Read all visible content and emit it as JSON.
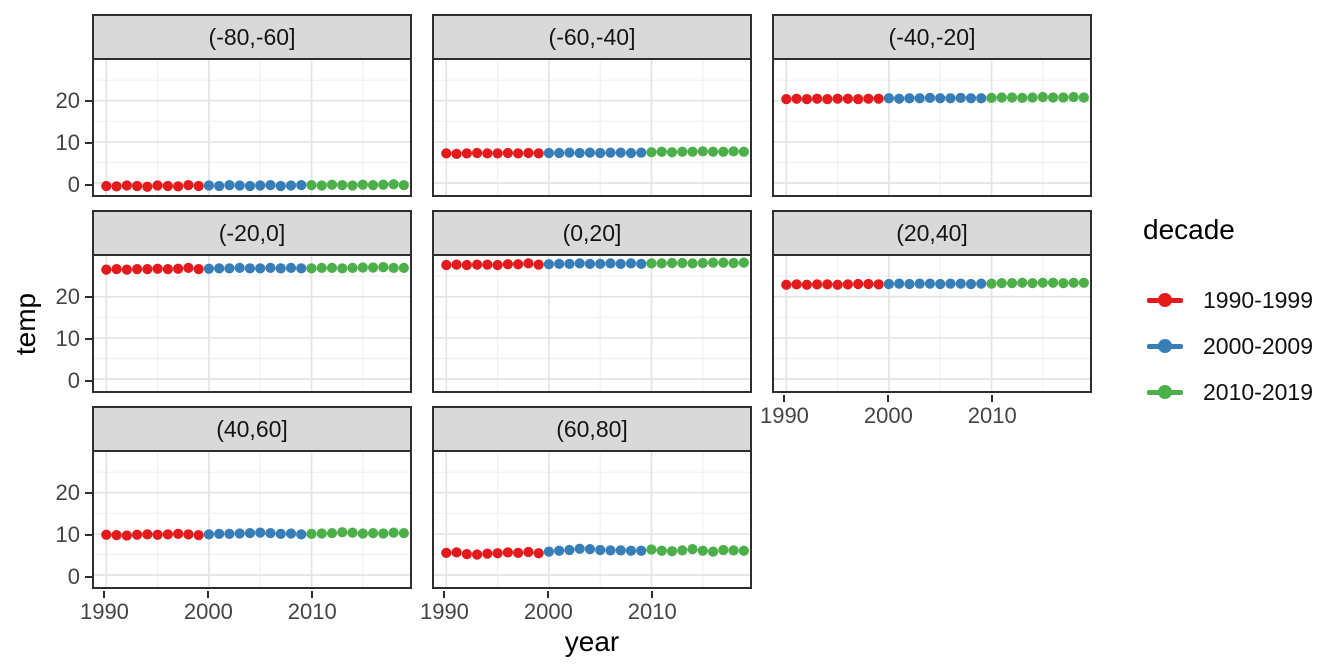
{
  "chart_data": {
    "type": "scatter",
    "title": "",
    "xlabel": "year",
    "ylabel": "temp",
    "legend_title": "decade",
    "legend_position": "right",
    "grid": true,
    "facet_layout": "3 columns, 8 panels",
    "x_range": [
      1988.8,
      2019.6
    ],
    "y_range": [
      -2.9,
      29.9
    ],
    "x_major_ticks": [
      1990,
      2000,
      2010
    ],
    "x_minor_ticks": [
      1995,
      2005,
      2015
    ],
    "y_major_ticks": [
      0,
      10,
      20
    ],
    "y_minor_ticks": [
      5,
      15,
      25
    ],
    "x": [
      1990,
      1991,
      1992,
      1993,
      1994,
      1995,
      1996,
      1997,
      1998,
      1999,
      2000,
      2001,
      2002,
      2003,
      2004,
      2005,
      2006,
      2007,
      2008,
      2009,
      2010,
      2011,
      2012,
      2013,
      2014,
      2015,
      2016,
      2017,
      2018,
      2019
    ],
    "series": [
      {
        "name": "1990-1999",
        "color": "#e41a1c"
      },
      {
        "name": "2000-2009",
        "color": "#377eb8"
      },
      {
        "name": "2010-2019",
        "color": "#4daf4a"
      }
    ],
    "facets": [
      {
        "label": "(-80,-60]",
        "temps": [
          -0.7,
          -0.8,
          -0.6,
          -0.7,
          -0.9,
          -0.6,
          -0.7,
          -0.8,
          -0.5,
          -0.7,
          -0.6,
          -0.7,
          -0.5,
          -0.6,
          -0.7,
          -0.6,
          -0.5,
          -0.7,
          -0.6,
          -0.5,
          -0.5,
          -0.6,
          -0.4,
          -0.5,
          -0.6,
          -0.4,
          -0.5,
          -0.4,
          -0.3,
          -0.5
        ]
      },
      {
        "label": "(-60,-40]",
        "temps": [
          7.2,
          7.1,
          7.2,
          7.3,
          7.2,
          7.2,
          7.3,
          7.2,
          7.3,
          7.2,
          7.3,
          7.3,
          7.4,
          7.3,
          7.4,
          7.3,
          7.4,
          7.4,
          7.3,
          7.4,
          7.5,
          7.6,
          7.5,
          7.6,
          7.6,
          7.7,
          7.6,
          7.6,
          7.7,
          7.6
        ]
      },
      {
        "label": "(-40,-20]",
        "temps": [
          20.4,
          20.5,
          20.4,
          20.5,
          20.4,
          20.5,
          20.5,
          20.4,
          20.5,
          20.5,
          20.6,
          20.5,
          20.6,
          20.6,
          20.7,
          20.6,
          20.6,
          20.7,
          20.6,
          20.6,
          20.7,
          20.8,
          20.8,
          20.7,
          20.8,
          20.9,
          20.8,
          20.8,
          20.9,
          20.8
        ]
      },
      {
        "label": "(-20,0]",
        "temps": [
          26.6,
          26.7,
          26.6,
          26.7,
          26.7,
          26.8,
          26.7,
          26.8,
          27.0,
          26.7,
          26.8,
          26.9,
          26.9,
          27.0,
          26.9,
          26.9,
          27.0,
          26.9,
          27.0,
          26.9,
          26.9,
          27.0,
          27.0,
          26.9,
          27.0,
          27.1,
          27.1,
          27.2,
          27.0,
          27.0
        ]
      },
      {
        "label": "(0,20]",
        "temps": [
          27.7,
          27.8,
          27.7,
          27.8,
          27.8,
          27.7,
          27.9,
          27.9,
          28.1,
          27.8,
          27.9,
          28.0,
          28.0,
          28.1,
          28.0,
          28.0,
          28.1,
          28.0,
          28.1,
          28.0,
          28.1,
          28.1,
          28.2,
          28.2,
          28.1,
          28.2,
          28.3,
          28.3,
          28.2,
          28.3
        ]
      },
      {
        "label": "(20,40]",
        "temps": [
          22.9,
          23.0,
          22.9,
          23.0,
          23.0,
          22.9,
          23.0,
          23.1,
          23.1,
          23.0,
          23.1,
          23.2,
          23.1,
          23.2,
          23.2,
          23.1,
          23.2,
          23.2,
          23.1,
          23.2,
          23.2,
          23.3,
          23.3,
          23.4,
          23.3,
          23.4,
          23.4,
          23.3,
          23.4,
          23.4
        ]
      },
      {
        "label": "(40,60]",
        "temps": [
          9.8,
          9.7,
          9.6,
          9.8,
          9.9,
          9.8,
          9.9,
          10.0,
          9.9,
          9.7,
          9.9,
          10.0,
          10.0,
          10.1,
          10.2,
          10.3,
          10.2,
          10.0,
          10.1,
          9.9,
          10.0,
          10.1,
          10.2,
          10.4,
          10.3,
          10.1,
          10.2,
          10.1,
          10.3,
          10.2
        ]
      },
      {
        "label": "(60,80]",
        "temps": [
          5.4,
          5.5,
          5.1,
          5.0,
          5.2,
          5.3,
          5.5,
          5.4,
          5.6,
          5.3,
          5.7,
          5.9,
          6.1,
          6.4,
          6.3,
          6.1,
          6.0,
          6.0,
          5.9,
          5.9,
          6.2,
          5.9,
          5.8,
          6.0,
          6.3,
          5.9,
          5.7,
          6.1,
          6.0,
          5.9
        ]
      }
    ],
    "style": {
      "strip_fill": "#d9d9d9",
      "panel_border": "#2e2e2e",
      "grid_major": "#e5e5e5",
      "grid_minor": "#f0f0f0",
      "axis_text": "#444444"
    }
  }
}
